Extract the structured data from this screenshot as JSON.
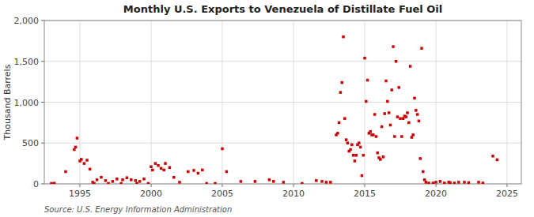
{
  "chart_data": {
    "type": "scatter",
    "title": "Monthly U.S. Exports to Venezuela of Distillate Fuel Oil",
    "ylabel": "Thousand Barrels",
    "source": "Source: U.S. Energy Information Administration",
    "color": "#cc0000",
    "marker": "square",
    "grid": true,
    "xlim": [
      1992.5,
      2026
    ],
    "ylim": [
      0,
      2000
    ],
    "xticks": [
      1995,
      2000,
      2005,
      2010,
      2015,
      2020,
      2025
    ],
    "yticks": [
      0,
      500,
      {
        "value": 1000,
        "label": "1,000"
      },
      {
        "value": 1500,
        "label": "1,500"
      },
      {
        "value": 2000,
        "label": "2,000"
      }
    ],
    "x": [
      1993.0,
      1993.2,
      1994.0,
      1994.6,
      1994.7,
      1994.8,
      1995.0,
      1995.1,
      1995.3,
      1995.5,
      1995.7,
      1995.9,
      1996.0,
      1996.2,
      1996.5,
      1996.8,
      1997.0,
      1997.3,
      1997.6,
      1997.9,
      1998.0,
      1998.3,
      1998.6,
      1998.9,
      1999.0,
      1999.2,
      1999.5,
      1999.8,
      2000.0,
      2000.1,
      2000.3,
      2000.5,
      2000.7,
      2000.9,
      2001.0,
      2001.3,
      2001.6,
      2002.0,
      2002.6,
      2003.0,
      2003.3,
      2003.6,
      2003.9,
      2004.5,
      2005.0,
      2005.3,
      2006.3,
      2007.3,
      2008.3,
      2008.6,
      2009.3,
      2010.6,
      2011.6,
      2012.0,
      2012.3,
      2012.6,
      2013.0,
      2013.1,
      2013.2,
      2013.3,
      2013.4,
      2013.5,
      2013.6,
      2013.7,
      2013.8,
      2013.9,
      2014.0,
      2014.1,
      2014.2,
      2014.3,
      2014.4,
      2014.5,
      2014.6,
      2014.7,
      2014.8,
      2014.9,
      2015.0,
      2015.1,
      2015.2,
      2015.3,
      2015.4,
      2015.5,
      2015.6,
      2015.7,
      2015.8,
      2015.9,
      2016.0,
      2016.1,
      2016.2,
      2016.3,
      2016.4,
      2016.5,
      2016.6,
      2016.7,
      2016.8,
      2016.9,
      2017.0,
      2017.1,
      2017.2,
      2017.3,
      2017.4,
      2017.5,
      2017.6,
      2017.7,
      2017.8,
      2017.9,
      2018.0,
      2018.1,
      2018.2,
      2018.3,
      2018.4,
      2018.5,
      2018.6,
      2018.7,
      2018.8,
      2018.9,
      2019.0,
      2019.1,
      2019.2,
      2019.3,
      2019.5,
      2019.8,
      2020.0,
      2020.3,
      2020.6,
      2020.9,
      2021.0,
      2021.3,
      2021.6,
      2022.0,
      2022.3,
      2023.0,
      2023.3,
      2024.0,
      2024.3
    ],
    "values": [
      5,
      8,
      150,
      420,
      450,
      560,
      280,
      300,
      250,
      290,
      180,
      20,
      5,
      50,
      80,
      40,
      5,
      30,
      60,
      5,
      50,
      75,
      50,
      40,
      5,
      30,
      60,
      5,
      210,
      170,
      250,
      225,
      190,
      170,
      250,
      200,
      80,
      20,
      150,
      165,
      130,
      170,
      5,
      5,
      430,
      150,
      30,
      30,
      50,
      30,
      20,
      5,
      40,
      30,
      20,
      20,
      600,
      620,
      750,
      1120,
      1240,
      1800,
      800,
      540,
      500,
      400,
      420,
      480,
      350,
      280,
      350,
      480,
      500,
      450,
      100,
      350,
      1540,
      1010,
      1270,
      620,
      640,
      600,
      600,
      850,
      580,
      380,
      320,
      300,
      700,
      330,
      860,
      1260,
      1010,
      870,
      720,
      1150,
      1680,
      580,
      1500,
      820,
      1180,
      800,
      580,
      800,
      830,
      820,
      870,
      750,
      1440,
      570,
      600,
      1050,
      900,
      850,
      770,
      310,
      1660,
      150,
      50,
      20,
      10,
      10,
      20,
      30,
      10,
      20,
      15,
      10,
      20,
      20,
      15,
      20,
      10,
      340,
      295
    ]
  }
}
